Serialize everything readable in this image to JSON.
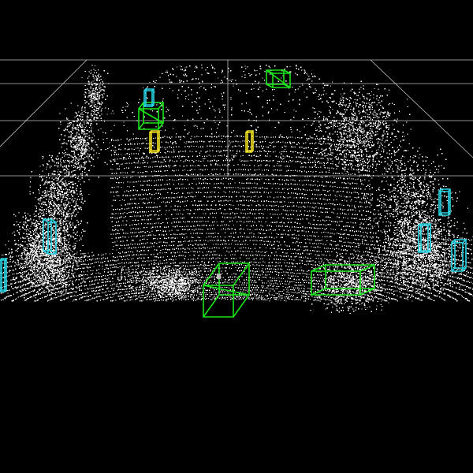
{
  "scene": {
    "type": "lidar-point-cloud-3d-detections",
    "background_color": "#000000",
    "grid_color": "#ffffff",
    "point_color": "#ffffff"
  },
  "class_colors": {
    "vehicle": "#19e619",
    "pedestrian": "#28d6e6",
    "cyclist": "#f0e020"
  }
}
